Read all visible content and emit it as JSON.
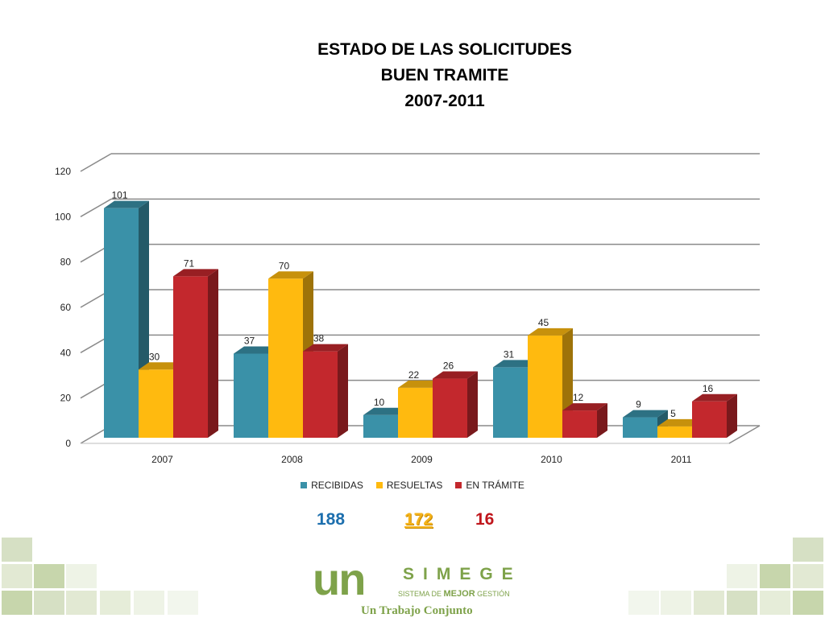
{
  "colors": {
    "recibidas": "#3a91a8",
    "resueltas": "#ffba0f",
    "en_tramite": "#c3282d",
    "gridline": "#8a8a8a",
    "logo": "#7ea24a"
  },
  "chart_data": {
    "type": "bar",
    "title_lines": [
      "ESTADO DE LAS SOLICITUDES",
      "BUEN TRAMITE",
      "2007-2011"
    ],
    "categories": [
      "2007",
      "2008",
      "2009",
      "2010",
      "2011"
    ],
    "series": [
      {
        "name": "RECIBIDAS",
        "values": [
          101,
          37,
          10,
          31,
          9
        ]
      },
      {
        "name": "RESUELTAS",
        "values": [
          30,
          70,
          22,
          45,
          5
        ]
      },
      {
        "name": "EN TRÁMITE",
        "values": [
          71,
          38,
          26,
          12,
          16
        ]
      }
    ],
    "ylim": [
      0,
      120
    ],
    "yticks": [
      "0",
      "20",
      "40",
      "60",
      "80",
      "100",
      "120"
    ],
    "grid": true,
    "legend": "bottom",
    "three_d": true
  },
  "totals": [
    {
      "value": "188",
      "color": "#1d6fae"
    },
    {
      "value": "172",
      "color": "#f5b31a"
    },
    {
      "value": "16",
      "color": "#c0161c"
    }
  ],
  "logo": {
    "mark": "un",
    "name": "SIMEGE",
    "sub_prefix": "SISTEMA DE ",
    "sub_bold": "MEJOR",
    "sub_suffix": " GESTIÓN",
    "tagline": "Un Trabajo Conjunto"
  }
}
